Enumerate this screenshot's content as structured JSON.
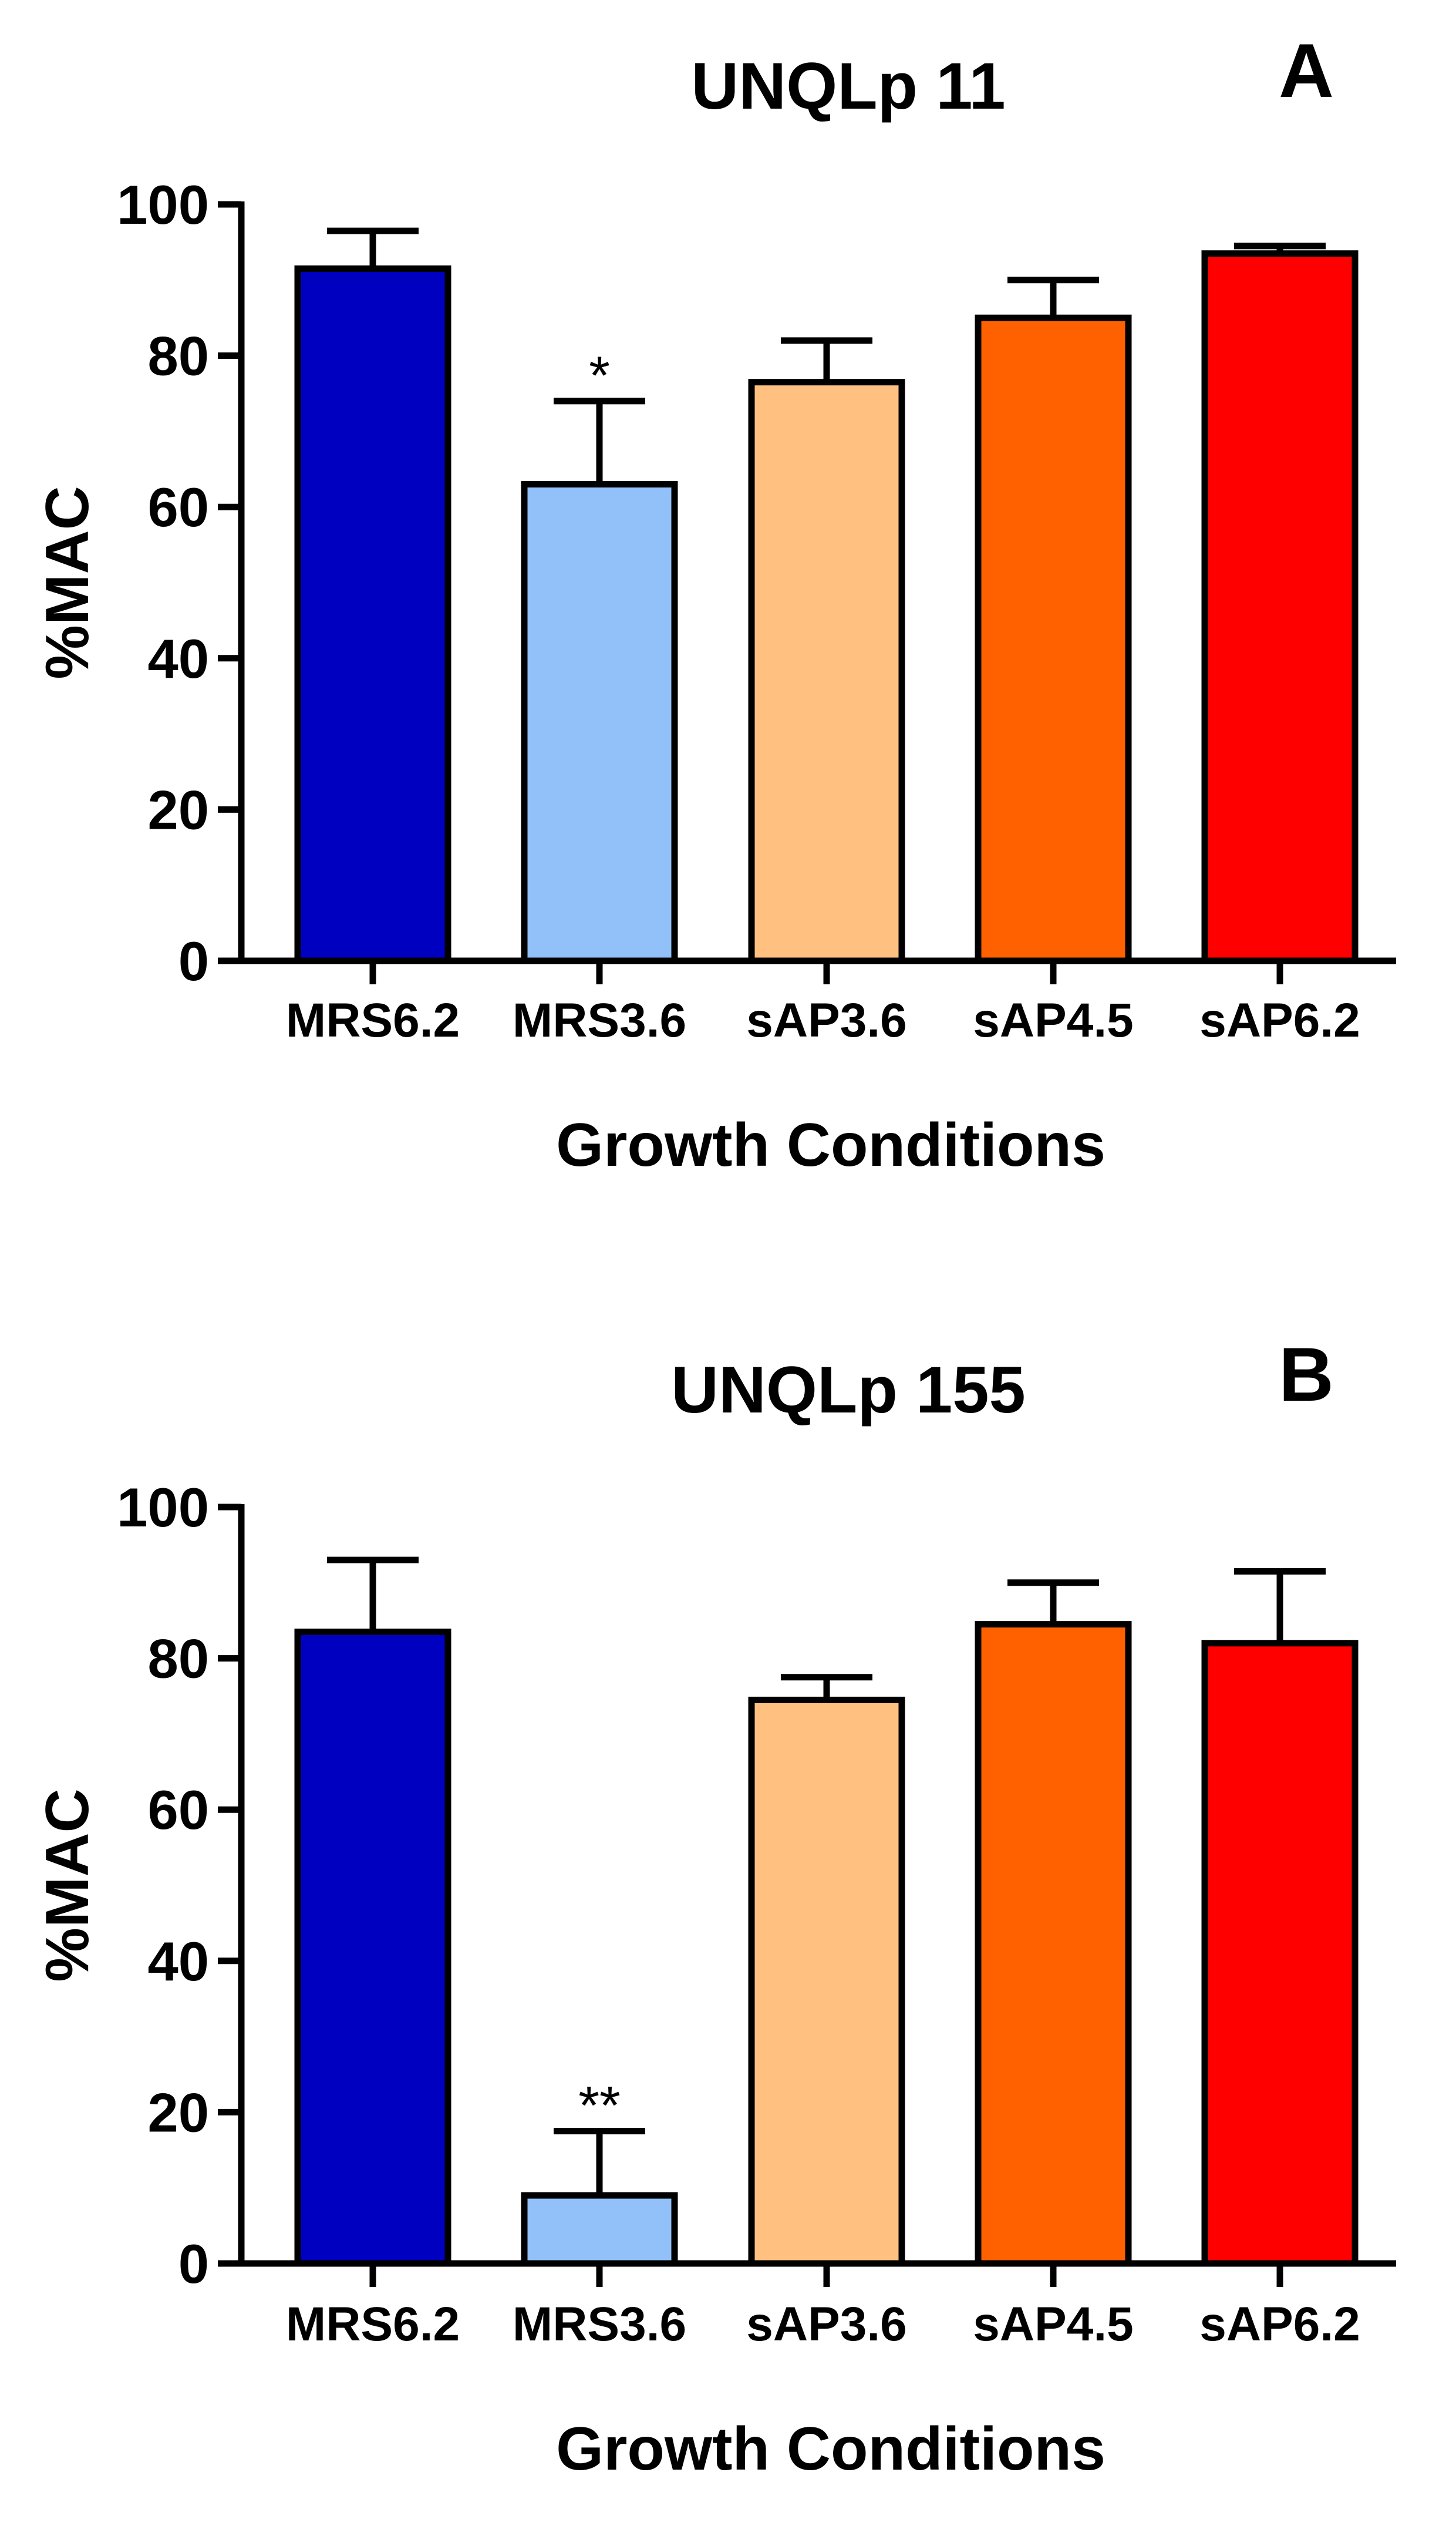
{
  "chart_data": [
    {
      "type": "bar",
      "title": "UNQLp 11",
      "panel_label": "A",
      "xlabel": "Growth Conditions",
      "ylabel": "%MAC",
      "ylim": [
        0,
        100
      ],
      "yticks": [
        "0",
        "20",
        "40",
        "60",
        "80",
        "100"
      ],
      "categories": [
        "MRS6.2",
        "MRS3.6",
        "sAP3.6",
        "sAP4.5",
        "sAP6.2"
      ],
      "values": [
        91.5,
        63,
        76.5,
        85,
        93.5
      ],
      "errors": [
        5,
        11,
        5.5,
        5,
        1
      ],
      "annotations": [
        "",
        "*",
        "",
        "",
        ""
      ],
      "colors": [
        "#0000c0",
        "#92c0f8",
        "#ffc080",
        "#ff6000",
        "#ff0000"
      ]
    },
    {
      "type": "bar",
      "title": "UNQLp 155",
      "panel_label": "B",
      "xlabel": "Growth Conditions",
      "ylabel": "%MAC",
      "ylim": [
        0,
        100
      ],
      "yticks": [
        "0",
        "20",
        "40",
        "60",
        "80",
        "100"
      ],
      "categories": [
        "MRS6.2",
        "MRS3.6",
        "sAP3.6",
        "sAP4.5",
        "sAP6.2"
      ],
      "values": [
        83.5,
        9,
        74.5,
        84.5,
        82
      ],
      "errors": [
        9.5,
        8.5,
        3,
        5.5,
        9.5
      ],
      "annotations": [
        "",
        "**",
        "",
        "",
        ""
      ],
      "colors": [
        "#0000c0",
        "#92c0f8",
        "#ffc080",
        "#ff6000",
        "#ff0000"
      ]
    }
  ]
}
